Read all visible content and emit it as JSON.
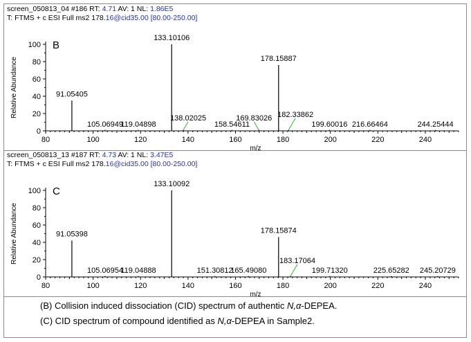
{
  "panels": [
    {
      "id": "B",
      "header1": {
        "a": "screen_050813_04 #186  RT: ",
        "rt": "4.71",
        "b": "  AV: 1  NL: ",
        "nl": "1.86E5"
      },
      "header2": {
        "a": "T: FTMS + c ESI Full ms2 178.",
        "b": "16@cid35.00 [80.00-250.00]"
      },
      "chart_data": {
        "type": "bar",
        "title": "B",
        "xlabel": "m/z",
        "ylabel": "Relative Abundance",
        "xlim": [
          80,
          254
        ],
        "ylim": [
          0,
          100
        ],
        "xticks": [
          80,
          100,
          120,
          140,
          160,
          180,
          200,
          220,
          240
        ],
        "yticks": [
          0,
          20,
          40,
          60,
          80,
          100
        ],
        "peaks": [
          {
            "mz": 91.05405,
            "intensity": 35,
            "label": "91.05405"
          },
          {
            "mz": 105.06949,
            "intensity": 1,
            "label": "105.06949"
          },
          {
            "mz": 119.04898,
            "intensity": 1,
            "label": "119.04898"
          },
          {
            "mz": 133.10106,
            "intensity": 100,
            "label": "133.10106"
          },
          {
            "mz": 138.02025,
            "intensity": 1,
            "label": "138.02025"
          },
          {
            "mz": 158.54611,
            "intensity": 1,
            "label": "158.54611"
          },
          {
            "mz": 169.83026,
            "intensity": 1,
            "label": "169.83026"
          },
          {
            "mz": 178.15887,
            "intensity": 76,
            "label": "178.15887"
          },
          {
            "mz": 182.33862,
            "intensity": 1,
            "label": "182.33862"
          },
          {
            "mz": 199.60016,
            "intensity": 1,
            "label": "199.60016"
          },
          {
            "mz": 216.66464,
            "intensity": 1,
            "label": "216.66464"
          },
          {
            "mz": 244.25444,
            "intensity": 1,
            "label": "244.25444"
          }
        ]
      }
    },
    {
      "id": "C",
      "header1": {
        "a": "screen_050813_13 #187  RT: ",
        "rt": "4.73",
        "b": "  AV: 1  NL: ",
        "nl": "3.47E5"
      },
      "header2": {
        "a": "T: FTMS + c ESI Full ms2 178.",
        "b": "16@cid35.00 [80.00-250.00]"
      },
      "chart_data": {
        "type": "bar",
        "title": "C",
        "xlabel": "m/z",
        "ylabel": "Relative Abundance",
        "xlim": [
          80,
          254
        ],
        "ylim": [
          0,
          100
        ],
        "xticks": [
          80,
          100,
          120,
          140,
          160,
          180,
          200,
          220,
          240
        ],
        "yticks": [
          0,
          20,
          40,
          60,
          80,
          100
        ],
        "peaks": [
          {
            "mz": 91.05398,
            "intensity": 42,
            "label": "91.05398"
          },
          {
            "mz": 105.06954,
            "intensity": 1,
            "label": "105.06954"
          },
          {
            "mz": 119.04888,
            "intensity": 1,
            "label": "119.04888"
          },
          {
            "mz": 133.10092,
            "intensity": 100,
            "label": "133.10092"
          },
          {
            "mz": 151.30812,
            "intensity": 1,
            "label": "151.30812"
          },
          {
            "mz": 165.4908,
            "intensity": 1,
            "label": "165.49080"
          },
          {
            "mz": 178.15874,
            "intensity": 46,
            "label": "178.15874"
          },
          {
            "mz": 183.17064,
            "intensity": 1,
            "label": "183.17064"
          },
          {
            "mz": 199.7132,
            "intensity": 1,
            "label": "199.71320"
          },
          {
            "mz": 225.65282,
            "intensity": 1,
            "label": "225.65282"
          },
          {
            "mz": 245.20729,
            "intensity": 1,
            "label": "245.20729"
          }
        ]
      }
    }
  ],
  "caption": {
    "line_b": {
      "pre": "(B) Collision induced dissociation (CID) spectrum of authentic ",
      "em": "N,α",
      "post": "-DEPEA."
    },
    "line_c": {
      "pre": "(C) CID spectrum of compound identified as ",
      "em": "N,α",
      "post": "-DEPEA in Sample2."
    }
  },
  "colors": {
    "peak": "#000000",
    "leader": "#2fb52f",
    "header_blue": "#1f2fd6"
  }
}
